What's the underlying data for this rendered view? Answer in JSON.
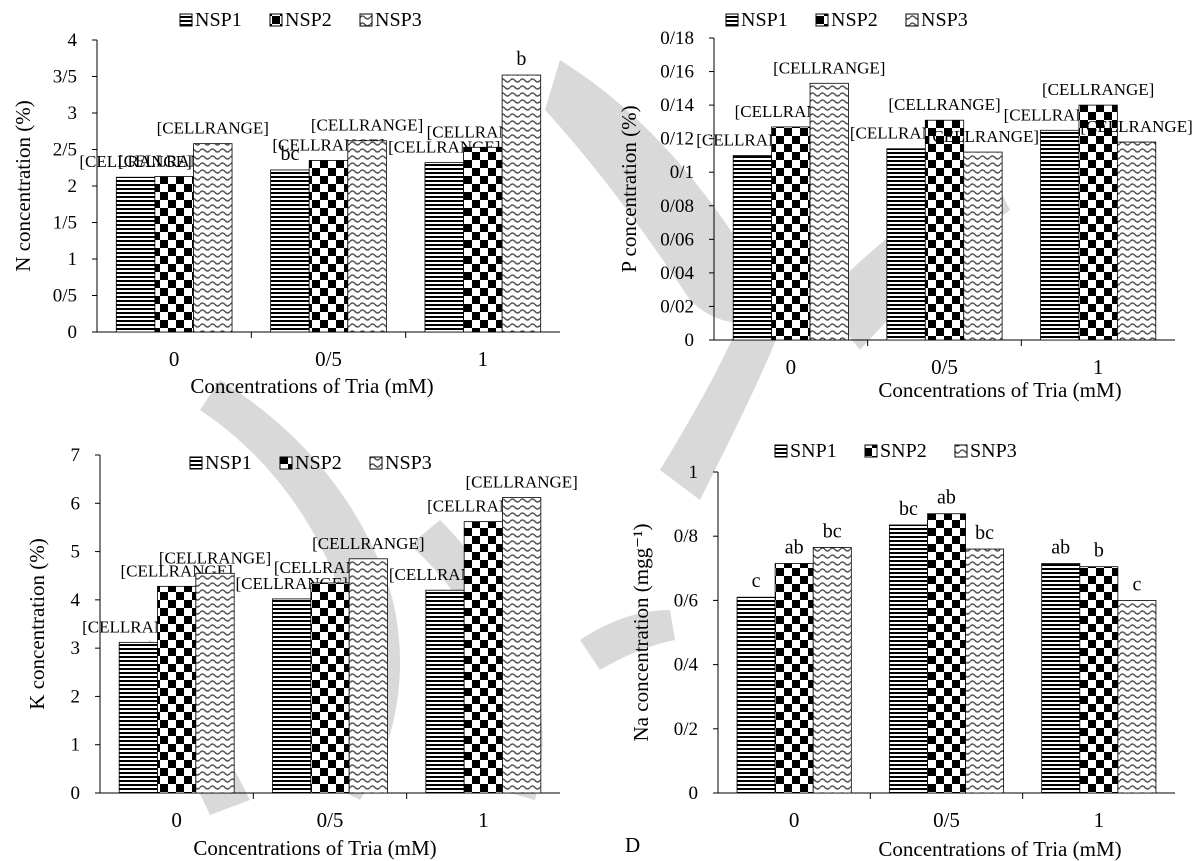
{
  "chart_data": [
    {
      "type": "bar",
      "title": "",
      "xlabel": "Concentrations of Tria (mM)",
      "ylabel": "N concentration (%)",
      "categories": [
        "0",
        "0/5",
        "1"
      ],
      "ylim": [
        0,
        4
      ],
      "yticks": [
        "0",
        "0/5",
        "1",
        "1/5",
        "2",
        "2/5",
        "3",
        "3/5",
        "4"
      ],
      "legend_position": "top",
      "series": [
        {
          "name": "NSP1",
          "pattern": "hstripe",
          "values": [
            2.12,
            2.22,
            2.32
          ]
        },
        {
          "name": "NSP2",
          "pattern": "checker",
          "values": [
            2.13,
            2.35,
            2.53
          ]
        },
        {
          "name": "NSP3",
          "pattern": "wave",
          "values": [
            2.58,
            2.62,
            3.52
          ]
        }
      ],
      "annotations": [
        "[CELLRANGE]",
        "[CELLRANGE]",
        "[CELLRANGE]",
        "bc",
        "[CELLRANGE]",
        "[CELLRANGE]",
        "[CELLRANGE]",
        "[CELLRANGE]",
        "b"
      ]
    },
    {
      "type": "bar",
      "title": "",
      "xlabel": "Concentrations of Tria (mM)",
      "ylabel": "P concentration (%)",
      "categories": [
        "0",
        "0/5",
        "1"
      ],
      "ylim": [
        0,
        0.18
      ],
      "yticks": [
        "0",
        "0/02",
        "0/04",
        "0/06",
        "0/08",
        "0/1",
        "0/12",
        "0/14",
        "0/16",
        "0/18"
      ],
      "legend_position": "top",
      "series": [
        {
          "name": "NSP1",
          "pattern": "hstripe",
          "values": [
            0.11,
            0.114,
            0.125
          ]
        },
        {
          "name": "NSP2",
          "pattern": "checker",
          "values": [
            0.127,
            0.131,
            0.14
          ]
        },
        {
          "name": "NSP3",
          "pattern": "wave",
          "values": [
            0.153,
            0.112,
            0.118
          ]
        }
      ],
      "annotations": [
        "[CELLRANGE]",
        "[CELLRANGE]",
        "[CELLRANGE]",
        "[CELLRANGE]",
        "[CELLRANGE]",
        "[CELLRANGE]",
        "[CELLRANGE]",
        "[CELLRANGE]",
        "[CELLRANGE]"
      ]
    },
    {
      "type": "bar",
      "title": "",
      "xlabel": "Concentrations of Tria (mM)",
      "ylabel": "K concentration (%)",
      "categories": [
        "0",
        "0/5",
        "1"
      ],
      "ylim": [
        0,
        7
      ],
      "yticks": [
        "0",
        "1",
        "2",
        "3",
        "4",
        "5",
        "6",
        "7"
      ],
      "legend_position": "top",
      "series": [
        {
          "name": "NSP1",
          "pattern": "hstripe",
          "values": [
            3.12,
            4.02,
            4.2
          ]
        },
        {
          "name": "NSP2",
          "pattern": "checker",
          "values": [
            4.28,
            4.35,
            5.62
          ]
        },
        {
          "name": "NSP3",
          "pattern": "wave",
          "values": [
            4.55,
            4.85,
            6.12
          ]
        }
      ],
      "annotations": [
        "[CELLRANGE]",
        "[CELLRANGE]",
        "[CELLRANGE]",
        "[CELLRANGE]",
        "[CELLRANGE]",
        "[CELLRANGE]",
        "[CELLRANGE]",
        "[CELLRANGE]",
        "[CELLRANGE]"
      ]
    },
    {
      "type": "bar",
      "title": "",
      "xlabel": "Concentrations of Tria (mM)",
      "ylabel": "Na concentration (mgg⁻¹)",
      "categories": [
        "0",
        "0/5",
        "1"
      ],
      "ylim": [
        0,
        1
      ],
      "yticks": [
        "0",
        "0/2",
        "0/4",
        "0/6",
        "0/8",
        "1"
      ],
      "legend_position": "top",
      "panel_letter": "D",
      "series": [
        {
          "name": "SNP1",
          "pattern": "hstripe",
          "values": [
            0.61,
            0.835,
            0.715
          ]
        },
        {
          "name": "SNP2",
          "pattern": "checker",
          "values": [
            0.715,
            0.87,
            0.705
          ]
        },
        {
          "name": "SNP3",
          "pattern": "wave",
          "values": [
            0.765,
            0.76,
            0.6
          ]
        }
      ],
      "annotations": [
        "c",
        "ab",
        "bc",
        "bc",
        "ab",
        "bc",
        "ab",
        "b",
        "c"
      ]
    }
  ],
  "overlay": {
    "watermark": "Arabic calligraphy logo"
  }
}
